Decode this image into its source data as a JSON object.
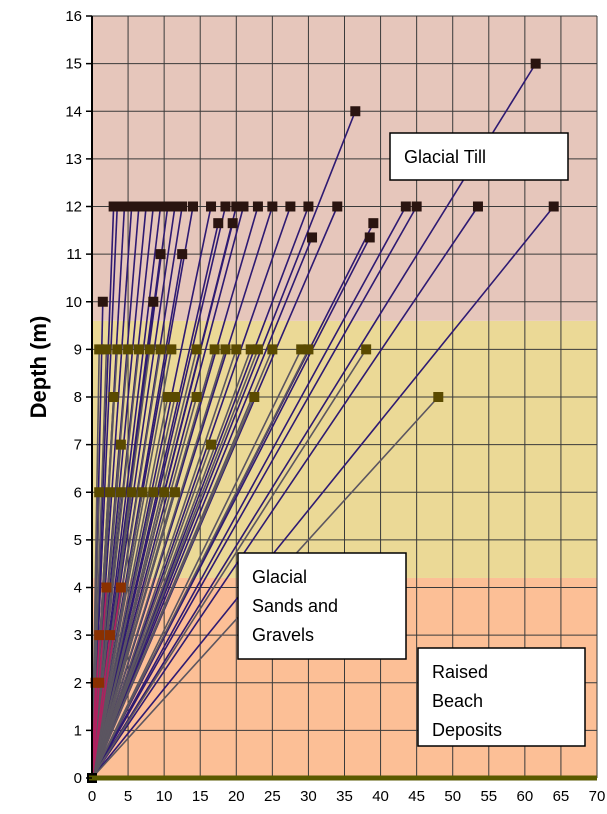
{
  "chart_data": {
    "type": "line",
    "title": "",
    "xlabel": "",
    "ylabel": "Depth (m)",
    "xlim": [
      0,
      70
    ],
    "ylim": [
      0,
      16
    ],
    "x_ticks": [
      "0",
      "5",
      "10",
      "15",
      "20",
      "25",
      "30",
      "35",
      "40",
      "45",
      "50",
      "55",
      "60",
      "65",
      "70"
    ],
    "y_ticks": [
      "0",
      "1",
      "2",
      "3",
      "4",
      "5",
      "6",
      "7",
      "8",
      "9",
      "10",
      "11",
      "12",
      "13",
      "14",
      "15",
      "16"
    ],
    "grid": true,
    "origin": [
      0,
      0
    ],
    "zones": [
      {
        "label": "Raised Beach Deposits",
        "lines": [
          "Raised",
          "Beach",
          "Deposits"
        ],
        "y_from": 0,
        "y_to": 4.2,
        "color": "#fcbf96"
      },
      {
        "label": "Glacial Sands and Gravels",
        "lines": [
          "Glacial",
          "Sands and",
          "Gravels"
        ],
        "y_from": 4.2,
        "y_to": 9.6,
        "color": "#ebd996"
      },
      {
        "label": "Glacial Till",
        "lines": [
          "Glacial Till"
        ],
        "y_from": 9.6,
        "y_to": 16,
        "color": "#e6c6bb"
      }
    ],
    "series_colors": {
      "till": "#2e1a72",
      "sand": "#5b5560",
      "beach": "#b0205f"
    },
    "series": [
      {
        "group": "till",
        "marker_color": "#2a1410",
        "points": [
          [
            61.5,
            15
          ],
          [
            36.5,
            14
          ],
          [
            64,
            12
          ],
          [
            53.5,
            12
          ],
          [
            45,
            12
          ],
          [
            43.5,
            12
          ],
          [
            34,
            12
          ],
          [
            30,
            12
          ],
          [
            27.5,
            12
          ],
          [
            25,
            12
          ],
          [
            23,
            12
          ],
          [
            21,
            12
          ],
          [
            20,
            12
          ],
          [
            18.5,
            12
          ],
          [
            16.5,
            12
          ],
          [
            14,
            12
          ],
          [
            12.5,
            12
          ],
          [
            11.5,
            12
          ],
          [
            10.5,
            12
          ],
          [
            9.5,
            12
          ],
          [
            8.5,
            12
          ],
          [
            7.5,
            12
          ],
          [
            6.5,
            12
          ],
          [
            5.5,
            12
          ],
          [
            4.5,
            12
          ],
          [
            3.5,
            12
          ],
          [
            3,
            12
          ],
          [
            39,
            11.65
          ],
          [
            38.5,
            11.35
          ],
          [
            30.5,
            11.35
          ],
          [
            17.5,
            11.65
          ],
          [
            19.5,
            11.65
          ],
          [
            12.5,
            11
          ],
          [
            9.5,
            11
          ],
          [
            8.5,
            10
          ],
          [
            1.5,
            10
          ]
        ]
      },
      {
        "group": "sand",
        "marker_color": "#5a4a00",
        "points": [
          [
            38,
            9
          ],
          [
            30,
            9
          ],
          [
            29,
            9
          ],
          [
            25,
            9
          ],
          [
            23,
            9
          ],
          [
            22,
            9
          ],
          [
            20,
            9
          ],
          [
            18.5,
            9
          ],
          [
            17,
            9
          ],
          [
            14.5,
            9
          ],
          [
            11,
            9
          ],
          [
            9.5,
            9
          ],
          [
            8,
            9
          ],
          [
            6.5,
            9
          ],
          [
            5,
            9
          ],
          [
            3.5,
            9
          ],
          [
            2,
            9
          ],
          [
            1,
            9
          ],
          [
            48,
            8
          ],
          [
            22.5,
            8
          ],
          [
            14.5,
            8
          ],
          [
            11.5,
            8
          ],
          [
            10.5,
            8
          ],
          [
            3,
            8
          ],
          [
            16.5,
            7
          ],
          [
            4,
            7
          ],
          [
            11.5,
            6
          ],
          [
            10,
            6
          ],
          [
            8.5,
            6
          ],
          [
            7,
            6
          ],
          [
            5.5,
            6
          ],
          [
            4,
            6
          ],
          [
            2.5,
            6
          ],
          [
            1,
            6
          ]
        ]
      },
      {
        "group": "beach",
        "marker_color": "#8a3000",
        "points": [
          [
            4,
            4
          ],
          [
            2,
            4
          ],
          [
            2.5,
            3
          ],
          [
            1,
            3
          ],
          [
            1,
            2
          ],
          [
            0.5,
            2
          ]
        ]
      }
    ]
  }
}
